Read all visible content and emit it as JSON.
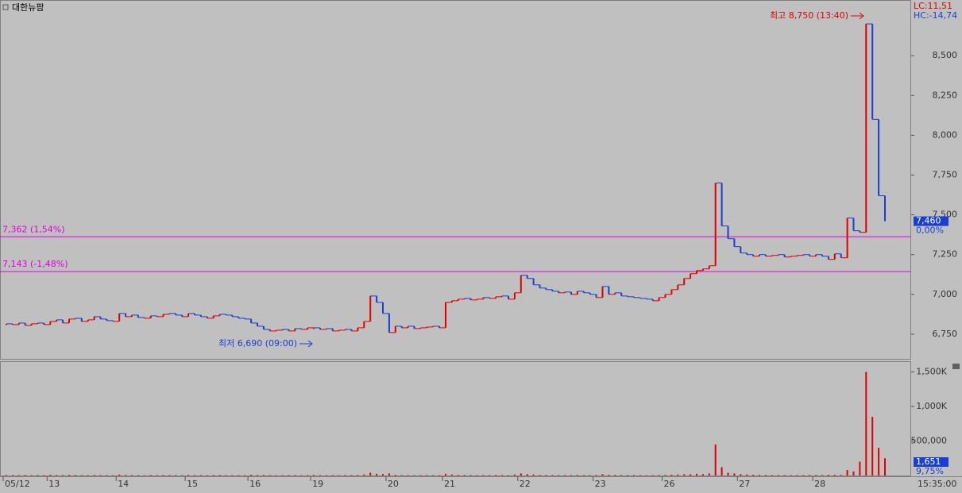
{
  "chart_data": [
    {
      "type": "price",
      "title": "대한뉴팜",
      "legend_text": [
        "LC:11,51",
        "HC:-14,74"
      ],
      "up_color": "#e00000",
      "down_color": "#1a3fd0",
      "categories": [
        "05/12",
        null,
        null,
        null,
        null,
        null,
        null,
        "13",
        null,
        null,
        null,
        null,
        null,
        null,
        null,
        null,
        null,
        null,
        "14",
        null,
        null,
        null,
        null,
        null,
        null,
        null,
        null,
        null,
        null,
        "15",
        null,
        null,
        null,
        null,
        null,
        null,
        null,
        null,
        null,
        "16",
        null,
        null,
        null,
        null,
        null,
        null,
        null,
        null,
        null,
        "19",
        null,
        null,
        null,
        null,
        null,
        null,
        null,
        null,
        null,
        null,
        null,
        "20",
        null,
        null,
        null,
        null,
        null,
        null,
        null,
        null,
        "21",
        null,
        null,
        null,
        null,
        null,
        null,
        null,
        null,
        null,
        null,
        null,
        "22",
        null,
        null,
        null,
        null,
        null,
        null,
        null,
        null,
        null,
        null,
        null,
        "23",
        null,
        null,
        null,
        null,
        null,
        null,
        null,
        null,
        null,
        null,
        "26",
        null,
        null,
        null,
        null,
        null,
        null,
        null,
        null,
        null,
        null,
        null,
        "27",
        null,
        null,
        null,
        null,
        null,
        null,
        null,
        null,
        null,
        null,
        null,
        "28",
        null,
        null,
        null,
        null,
        null,
        null,
        null,
        null,
        null,
        null,
        null,
        null,
        null,
        null,
        null
      ],
      "series": [
        {
          "name": "대한뉴팜",
          "values": [
            6815,
            6810,
            6820,
            6805,
            6815,
            6820,
            6810,
            6830,
            6840,
            6820,
            6845,
            6850,
            6830,
            6840,
            6860,
            6845,
            6835,
            6830,
            6880,
            6860,
            6870,
            6855,
            6850,
            6865,
            6860,
            6875,
            6880,
            6870,
            6860,
            6880,
            6870,
            6860,
            6850,
            6865,
            6875,
            6870,
            6860,
            6850,
            6845,
            6820,
            6800,
            6780,
            6770,
            6775,
            6780,
            6770,
            6785,
            6780,
            6790,
            6790,
            6780,
            6785,
            6770,
            6775,
            6780,
            6770,
            6790,
            6830,
            6990,
            6950,
            6880,
            6760,
            6800,
            6790,
            6800,
            6785,
            6790,
            6795,
            6800,
            6790,
            6950,
            6960,
            6970,
            6975,
            6965,
            6970,
            6980,
            6975,
            6985,
            6990,
            6970,
            7010,
            7120,
            7100,
            7060,
            7040,
            7030,
            7020,
            7010,
            7015,
            7000,
            7020,
            7010,
            7000,
            6980,
            7050,
            7000,
            7010,
            6990,
            6985,
            6980,
            6975,
            6970,
            6960,
            6980,
            7000,
            7030,
            7060,
            7100,
            7130,
            7150,
            7160,
            7180,
            7700,
            7430,
            7350,
            7300,
            7260,
            7250,
            7240,
            7250,
            7240,
            7245,
            7250,
            7235,
            7240,
            7245,
            7250,
            7240,
            7250,
            7240,
            7220,
            7255,
            7230,
            7480,
            7400,
            7390,
            8700,
            8100,
            7620,
            7460,
            null,
            null,
            null,
            null
          ]
        }
      ],
      "ylim": [
        6590,
        8850
      ],
      "yticks": [
        {
          "value": 6750,
          "label": "6,750"
        },
        {
          "value": 7000,
          "label": "7,000"
        },
        {
          "value": 7250,
          "label": "7,250"
        },
        {
          "value": 7500,
          "label": "7,500"
        },
        {
          "value": 7750,
          "label": "7,750"
        },
        {
          "value": 8000,
          "label": "8,000"
        },
        {
          "value": 8250,
          "label": "8,250"
        },
        {
          "value": 8500,
          "label": "8,500"
        }
      ],
      "hlines": [
        {
          "value": 7362,
          "label": "7,362 (1,54%)",
          "color": "#e000e0"
        },
        {
          "value": 7143,
          "label": "7,143 (-1,48%)",
          "color": "#e000e0"
        }
      ],
      "annotations": [
        {
          "text": "최고 8,750 (13:40)",
          "value": 8750,
          "color": "#e00000"
        },
        {
          "text": "최저 6,690 (09:00)",
          "value": 6690,
          "color": "#1a3fd0"
        }
      ],
      "last_tag": {
        "value": 7460,
        "label": "7,460"
      },
      "change_tag": "0,00%",
      "time_label": "15:35:00"
    },
    {
      "type": "volume",
      "color": "#e00000",
      "values": [
        9000,
        8000,
        7000,
        9000,
        6000,
        8000,
        7000,
        12000,
        9000,
        8000,
        10000,
        9000,
        8000,
        7000,
        9000,
        8000,
        7000,
        6000,
        15000,
        9000,
        8000,
        7000,
        6000,
        8000,
        7000,
        9000,
        8000,
        7000,
        6000,
        10000,
        8000,
        7000,
        6000,
        8000,
        9000,
        7000,
        6000,
        7000,
        6000,
        12000,
        9000,
        8000,
        7000,
        6000,
        7000,
        8000,
        7000,
        6000,
        7000,
        10000,
        7000,
        6000,
        7000,
        6000,
        7000,
        8000,
        9000,
        15000,
        40000,
        25000,
        20000,
        30000,
        10000,
        8000,
        7000,
        6000,
        7000,
        8000,
        6000,
        7000,
        25000,
        15000,
        10000,
        9000,
        8000,
        7000,
        8000,
        7000,
        9000,
        8000,
        7000,
        15000,
        30000,
        20000,
        15000,
        10000,
        9000,
        8000,
        7000,
        8000,
        7000,
        9000,
        8000,
        7000,
        9000,
        20000,
        12000,
        9000,
        8000,
        7000,
        8000,
        7000,
        6000,
        7000,
        8000,
        10000,
        12000,
        15000,
        18000,
        20000,
        25000,
        20000,
        30000,
        450000,
        120000,
        40000,
        30000,
        20000,
        15000,
        12000,
        10000,
        9000,
        8000,
        9000,
        8000,
        7000,
        8000,
        7000,
        10000,
        9000,
        8000,
        12000,
        10000,
        9000,
        80000,
        60000,
        200000,
        1500000,
        850000,
        400000,
        250000,
        null,
        null,
        null,
        null
      ],
      "ylim": [
        0,
        1655000
      ],
      "yticks": [
        {
          "value": 500000,
          "label": "500,000"
        },
        {
          "value": 1000000,
          "label": "1,000K"
        },
        {
          "value": 1500000,
          "label": "1,500K"
        }
      ],
      "last_tag": {
        "value": 1651,
        "label": "1,651"
      },
      "ratio_tag": "9,75%"
    }
  ]
}
